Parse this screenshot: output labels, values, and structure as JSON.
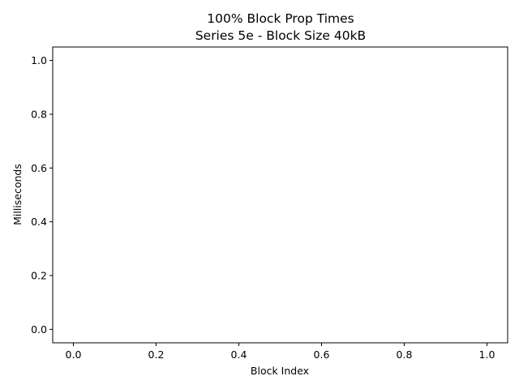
{
  "chart_data": {
    "type": "line",
    "title": "100% Block Prop Times",
    "subtitle": "Series 5e - Block Size 40kB",
    "xlabel": "Block Index",
    "ylabel": "Milliseconds",
    "xlim": [
      -0.05,
      1.05
    ],
    "ylim": [
      -0.05,
      1.05
    ],
    "xticks": [
      "0.0",
      "0.2",
      "0.4",
      "0.6",
      "0.8",
      "1.0"
    ],
    "yticks": [
      "0.0",
      "0.2",
      "0.4",
      "0.6",
      "0.8",
      "1.0"
    ],
    "series": [],
    "grid": false,
    "legend": "none"
  }
}
